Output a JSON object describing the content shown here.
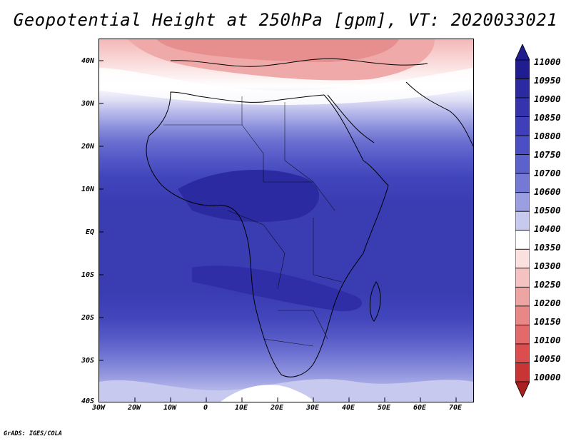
{
  "title": "Geopotential Height at 250hPa [gpm], VT: 2020033021",
  "credit": "GrADS: IGES/COLA",
  "map": {
    "y_ticks": [
      "40N",
      "30N",
      "20N",
      "10N",
      "EQ",
      "10S",
      "20S",
      "30S",
      "40S"
    ],
    "x_ticks": [
      "30W",
      "20W",
      "10W",
      "0",
      "10E",
      "20E",
      "30E",
      "40E",
      "50E",
      "60E",
      "70E"
    ],
    "lat_range": [
      -40,
      45
    ],
    "lon_range": [
      -30,
      75
    ]
  },
  "colorbar": {
    "levels": [
      "11000",
      "10950",
      "10900",
      "10850",
      "10800",
      "10750",
      "10700",
      "10600",
      "10500",
      "10400",
      "10350",
      "10300",
      "10250",
      "10200",
      "10150",
      "10100",
      "10050",
      "10000"
    ],
    "colors": [
      "#1f1d8f",
      "#2b2aa0",
      "#3534ad",
      "#3f3fb9",
      "#4c4fc4",
      "#5c62cc",
      "#7579d6",
      "#9b9fe2",
      "#c7c9ef",
      "#ffffff",
      "#fbe0e0",
      "#f5c2c2",
      "#efa4a4",
      "#e98787",
      "#e36a6a",
      "#dc4d4d",
      "#c93434",
      "#a82020"
    ]
  }
}
